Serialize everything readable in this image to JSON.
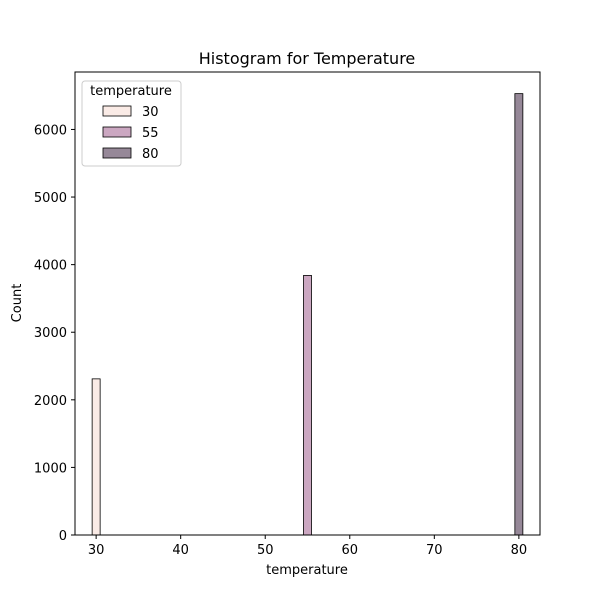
{
  "chart_data": {
    "type": "bar",
    "title": "Histogram for Temperature",
    "xlabel": "temperature",
    "ylabel": "Count",
    "xlim": [
      27.5,
      82.5
    ],
    "ylim": [
      0,
      6850
    ],
    "x_ticks": [
      30,
      40,
      50,
      60,
      70,
      80
    ],
    "y_ticks": [
      0,
      1000,
      2000,
      3000,
      4000,
      5000,
      6000
    ],
    "grid": false,
    "legend_position": "top-left",
    "legend_title": "temperature",
    "series": [
      {
        "name": "30",
        "x": 30,
        "value": 2310,
        "color": "#faebe6"
      },
      {
        "name": "55",
        "x": 55,
        "value": 3840,
        "color": "#cba7c1"
      },
      {
        "name": "80",
        "x": 80,
        "value": 6530,
        "color": "#968898"
      }
    ]
  }
}
